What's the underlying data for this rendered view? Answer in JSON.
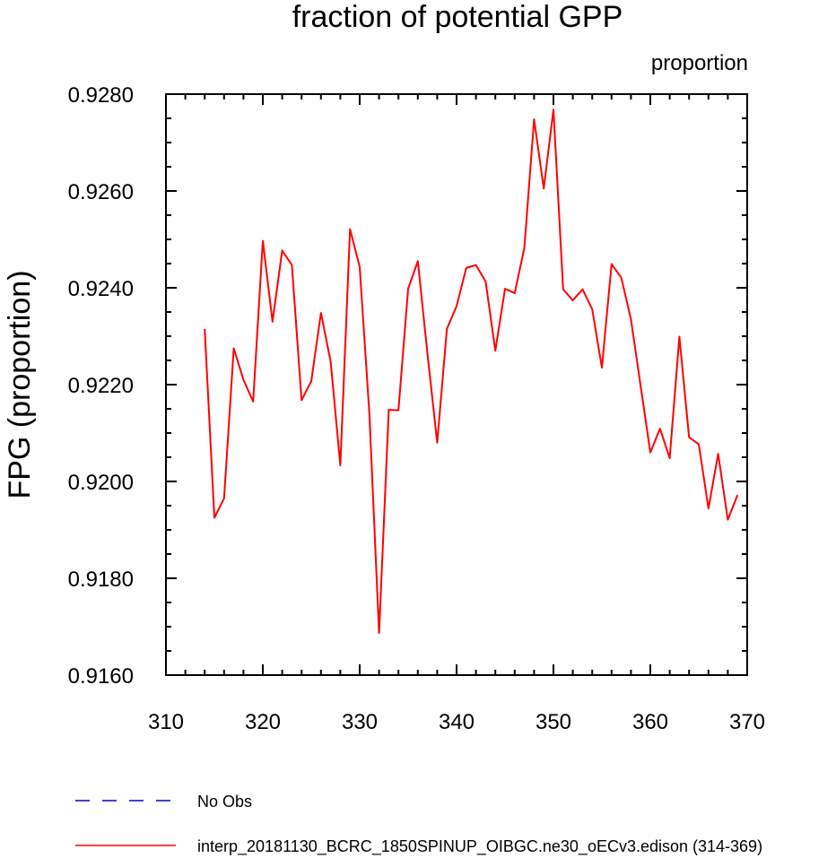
{
  "chart_data": {
    "type": "line",
    "title": "fraction of potential GPP",
    "units_label": "proportion",
    "ylabel": "FPG  (proportion)",
    "xlim": [
      310,
      370
    ],
    "ylim": [
      0.916,
      0.928
    ],
    "xticks": [
      "310",
      "320",
      "330",
      "340",
      "350",
      "360",
      "370"
    ],
    "yticks": [
      "0.9160",
      "0.9180",
      "0.9200",
      "0.9220",
      "0.9240",
      "0.9260",
      "0.9280"
    ],
    "x": [
      314,
      315,
      316,
      317,
      318,
      319,
      320,
      321,
      322,
      323,
      324,
      325,
      326,
      327,
      328,
      329,
      330,
      331,
      332,
      333,
      334,
      335,
      336,
      337,
      338,
      339,
      340,
      341,
      342,
      343,
      344,
      345,
      346,
      347,
      348,
      349,
      350,
      351,
      352,
      353,
      354,
      355,
      356,
      357,
      358,
      359,
      360,
      361,
      362,
      363,
      364,
      365,
      366,
      367,
      368,
      369
    ],
    "series": [
      {
        "name": "interp_20181130_BCRC_1850SPINUP_OIBGC.ne30_oECv3.edison (314-369)",
        "color": "#ff0000",
        "style": "solid",
        "values": [
          0.92315,
          0.91925,
          0.91965,
          0.92275,
          0.9221,
          0.92165,
          0.92497,
          0.9233,
          0.92477,
          0.92447,
          0.92168,
          0.92207,
          0.92348,
          0.92248,
          0.92033,
          0.92521,
          0.92443,
          0.9214,
          0.91687,
          0.92148,
          0.92147,
          0.92398,
          0.92455,
          0.92263,
          0.9208,
          0.92315,
          0.92362,
          0.92441,
          0.92447,
          0.92413,
          0.9227,
          0.92398,
          0.92389,
          0.92483,
          0.92748,
          0.92605,
          0.92768,
          0.92397,
          0.92374,
          0.92397,
          0.92356,
          0.92235,
          0.92449,
          0.92421,
          0.92335,
          0.92197,
          0.9206,
          0.92109,
          0.92048,
          0.92299,
          0.92091,
          0.92077,
          0.91944,
          0.92057,
          0.91921,
          0.91972
        ]
      }
    ],
    "legend": [
      {
        "label": "No Obs",
        "color": "#0000cc",
        "style": "dashed"
      },
      {
        "label": "interp_20181130_BCRC_1850SPINUP_OIBGC.ne30_oECv3.edison (314-369)",
        "color": "#ff0000",
        "style": "solid"
      }
    ],
    "grid": false,
    "legend_position": "bottom"
  }
}
